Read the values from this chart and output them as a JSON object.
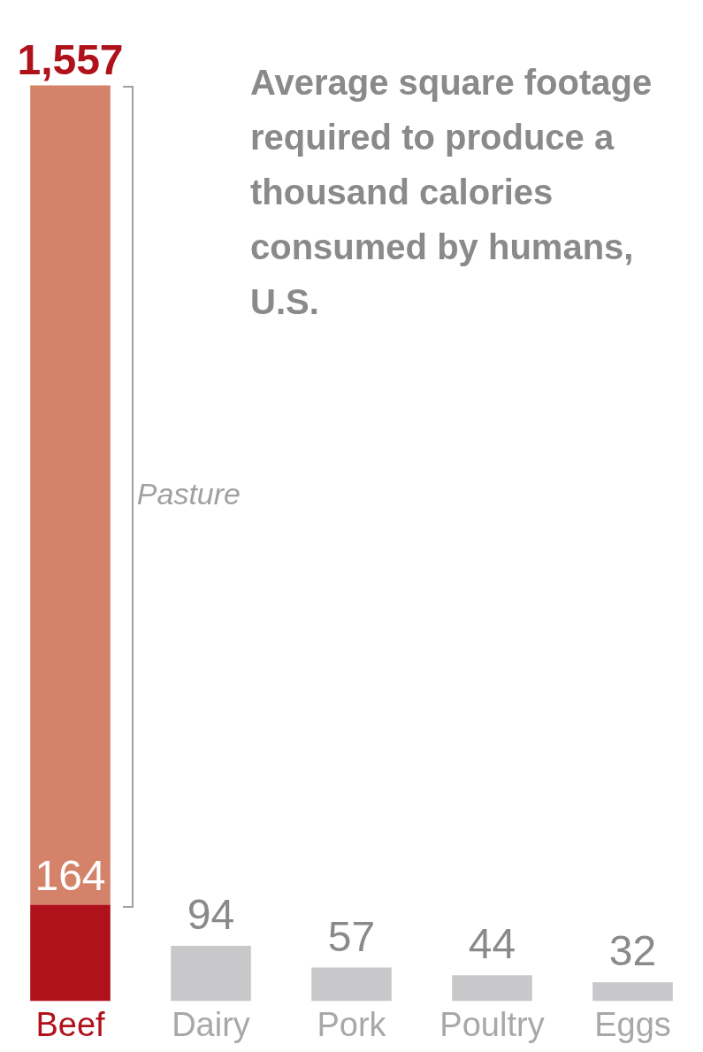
{
  "chart_data": {
    "type": "bar",
    "title": "Average square footage required to produce a thousand calories consumed by humans, U.S.",
    "categories": [
      "Beef",
      "Dairy",
      "Pork",
      "Poultry",
      "Eggs"
    ],
    "stacked": true,
    "series": [
      {
        "colors": [
          "#b0121b",
          "#c8c8ca",
          "#c8c8ca",
          "#c8c8ca",
          "#c8c8ca"
        ],
        "values": [
          164,
          94,
          57,
          44,
          32
        ],
        "value_labels": [
          "164",
          "94",
          "57",
          "44",
          "32"
        ]
      },
      {
        "colors": [
          "#d4826a",
          null,
          null,
          null,
          null
        ],
        "values": [
          1393,
          null,
          null,
          null,
          null
        ]
      }
    ],
    "totals": [
      "1,557",
      null,
      null,
      null,
      null
    ],
    "annotations": [
      "Pasture"
    ],
    "grid": false,
    "legend": false
  }
}
